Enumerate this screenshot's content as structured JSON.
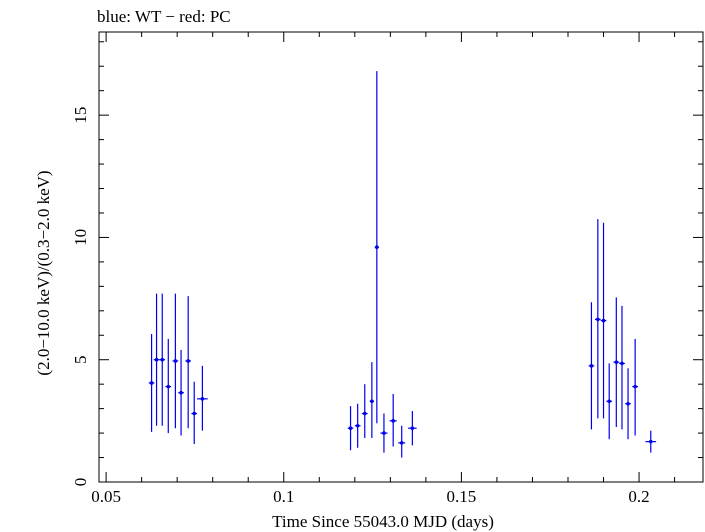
{
  "chart_data": {
    "type": "scatter",
    "title": "blue: WT − red: PC",
    "xlabel": "Time Since 55043.0 MJD (days)",
    "ylabel": "(2.0−10.0 keV)/(0.3−2.0 keV)",
    "xlim": [
      0.048,
      0.218
    ],
    "ylim": [
      0,
      18.4
    ],
    "x_ticks": [
      0.05,
      0.1,
      0.15,
      0.2
    ],
    "x_tick_labels": [
      "0.05",
      "0.1",
      "0.15",
      "0.2"
    ],
    "y_ticks": [
      0,
      5,
      10,
      15
    ],
    "y_tick_labels": [
      "0",
      "5",
      "10",
      "15"
    ],
    "grid": false,
    "series": [
      {
        "name": "WT",
        "color": "#0000ee",
        "points": [
          {
            "x": 0.0628,
            "y": 4.05,
            "xerr": 0.0008,
            "ylo": 2.05,
            "yhi": 6.05
          },
          {
            "x": 0.0642,
            "y": 5.0,
            "xerr": 0.0008,
            "ylo": 2.3,
            "yhi": 7.7
          },
          {
            "x": 0.0658,
            "y": 5.0,
            "xerr": 0.0008,
            "ylo": 2.3,
            "yhi": 7.7
          },
          {
            "x": 0.0675,
            "y": 3.9,
            "xerr": 0.0008,
            "ylo": 2.0,
            "yhi": 5.85
          },
          {
            "x": 0.0695,
            "y": 4.95,
            "xerr": 0.0008,
            "ylo": 2.2,
            "yhi": 7.7
          },
          {
            "x": 0.0711,
            "y": 3.65,
            "xerr": 0.0008,
            "ylo": 1.9,
            "yhi": 5.4
          },
          {
            "x": 0.0731,
            "y": 4.95,
            "xerr": 0.0008,
            "ylo": 2.2,
            "yhi": 7.6
          },
          {
            "x": 0.0748,
            "y": 2.8,
            "xerr": 0.0008,
            "ylo": 1.55,
            "yhi": 4.1
          },
          {
            "x": 0.0771,
            "y": 3.4,
            "xerr": 0.0015,
            "ylo": 2.1,
            "yhi": 4.75
          },
          {
            "x": 0.1188,
            "y": 2.2,
            "xerr": 0.0008,
            "ylo": 1.3,
            "yhi": 3.1
          },
          {
            "x": 0.1208,
            "y": 2.3,
            "xerr": 0.0008,
            "ylo": 1.4,
            "yhi": 3.2
          },
          {
            "x": 0.1228,
            "y": 2.8,
            "xerr": 0.0008,
            "ylo": 1.8,
            "yhi": 4.0
          },
          {
            "x": 0.1248,
            "y": 3.3,
            "xerr": 0.0006,
            "ylo": 1.8,
            "yhi": 4.9
          },
          {
            "x": 0.1262,
            "y": 9.6,
            "xerr": 0.0006,
            "ylo": 2.4,
            "yhi": 16.8
          },
          {
            "x": 0.1282,
            "y": 2.0,
            "xerr": 0.001,
            "ylo": 1.2,
            "yhi": 2.8
          },
          {
            "x": 0.1308,
            "y": 2.5,
            "xerr": 0.001,
            "ylo": 1.45,
            "yhi": 3.6
          },
          {
            "x": 0.1332,
            "y": 1.6,
            "xerr": 0.001,
            "ylo": 1.0,
            "yhi": 2.3
          },
          {
            "x": 0.1362,
            "y": 2.2,
            "xerr": 0.0012,
            "ylo": 1.5,
            "yhi": 2.9
          },
          {
            "x": 0.1866,
            "y": 4.75,
            "xerr": 0.0008,
            "ylo": 2.15,
            "yhi": 7.35
          },
          {
            "x": 0.1884,
            "y": 6.65,
            "xerr": 0.0008,
            "ylo": 2.6,
            "yhi": 10.75
          },
          {
            "x": 0.19,
            "y": 6.6,
            "xerr": 0.0008,
            "ylo": 2.6,
            "yhi": 10.6
          },
          {
            "x": 0.1916,
            "y": 3.3,
            "xerr": 0.0008,
            "ylo": 1.75,
            "yhi": 4.85
          },
          {
            "x": 0.1936,
            "y": 4.9,
            "xerr": 0.0008,
            "ylo": 2.25,
            "yhi": 7.55
          },
          {
            "x": 0.1952,
            "y": 4.85,
            "xerr": 0.0008,
            "ylo": 2.15,
            "yhi": 7.2
          },
          {
            "x": 0.1969,
            "y": 3.2,
            "xerr": 0.0008,
            "ylo": 1.75,
            "yhi": 4.65
          },
          {
            "x": 0.1989,
            "y": 3.9,
            "xerr": 0.0008,
            "ylo": 1.9,
            "yhi": 5.85
          },
          {
            "x": 0.2033,
            "y": 1.65,
            "xerr": 0.0015,
            "ylo": 1.2,
            "yhi": 2.1
          }
        ]
      }
    ]
  }
}
